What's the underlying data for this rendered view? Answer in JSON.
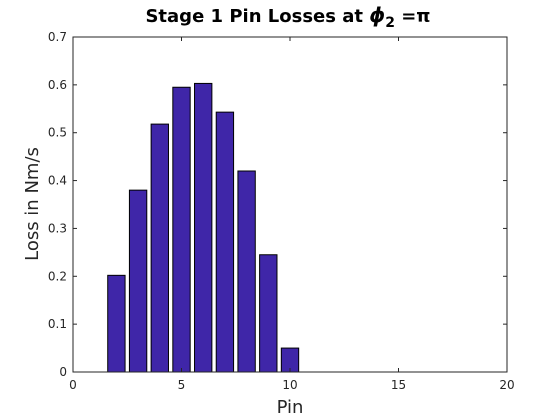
{
  "chart_data": {
    "type": "bar",
    "title_main": "Stage 1 Pin Losses at ",
    "title_symbol": "ϕ",
    "title_subscript": "2",
    "title_tail": " =π",
    "xlabel": "Pin",
    "ylabel": "Loss in Nm/s",
    "xlim": [
      0,
      20
    ],
    "ylim": [
      0,
      0.7
    ],
    "x_ticks": [
      0,
      5,
      10,
      15,
      20
    ],
    "y_ticks": [
      0,
      0.1,
      0.2,
      0.3,
      0.4,
      0.5,
      0.6,
      0.7
    ],
    "x": [
      2,
      3,
      4,
      5,
      6,
      7,
      8,
      9,
      10
    ],
    "values": [
      0.202,
      0.38,
      0.518,
      0.595,
      0.603,
      0.543,
      0.42,
      0.245,
      0.05
    ],
    "bar_color": "#3f26a8",
    "grid": false,
    "box": true
  }
}
